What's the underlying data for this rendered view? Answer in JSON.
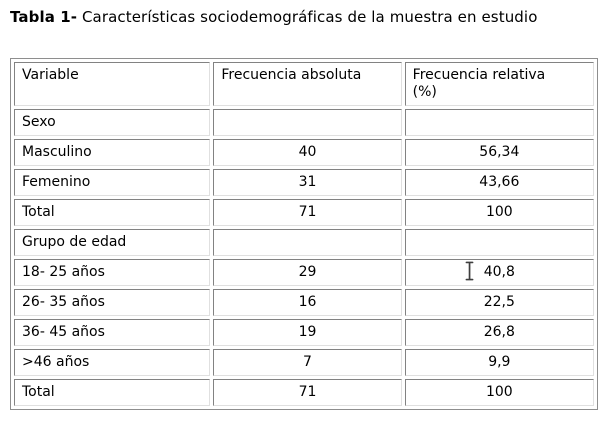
{
  "title": {
    "bold": "Tabla 1-",
    "rest": " Características sociodemográficas de la muestra en estudio"
  },
  "table": {
    "headers": [
      "Variable",
      "Frecuencia absoluta",
      "Frecuencia relativa (%)"
    ],
    "rows": [
      {
        "label": "Sexo",
        "abs": "",
        "rel": "",
        "section": true
      },
      {
        "label": "Masculino",
        "abs": "40",
        "rel": "56,34",
        "section": false
      },
      {
        "label": "Femenino",
        "abs": "31",
        "rel": "43,66",
        "section": false
      },
      {
        "label": "Total",
        "abs": "71",
        "rel": "100",
        "section": false
      },
      {
        "label": "Grupo de edad",
        "abs": "",
        "rel": "",
        "section": true
      },
      {
        "label": "18- 25 años",
        "abs": "29",
        "rel": "40,8",
        "section": false
      },
      {
        "label": "26- 35 años",
        "abs": "16",
        "rel": "22,5",
        "section": false
      },
      {
        "label": "36- 45 años",
        "abs": "19",
        "rel": "26,8",
        "section": false
      },
      {
        "label": ">46 años",
        "abs": "7",
        "rel": "9,9",
        "section": false
      },
      {
        "label": "Total",
        "abs": "71",
        "rel": "100",
        "section": false
      }
    ]
  },
  "cursor": {
    "icon": "text-ibeam"
  },
  "colors": {
    "page_bg": "#ffffff",
    "text": "#000000",
    "border_outer": "#8e8e8e",
    "border_dark": "#828282",
    "border_light": "#e0e0e0",
    "cursor": "#3f3f3f"
  }
}
